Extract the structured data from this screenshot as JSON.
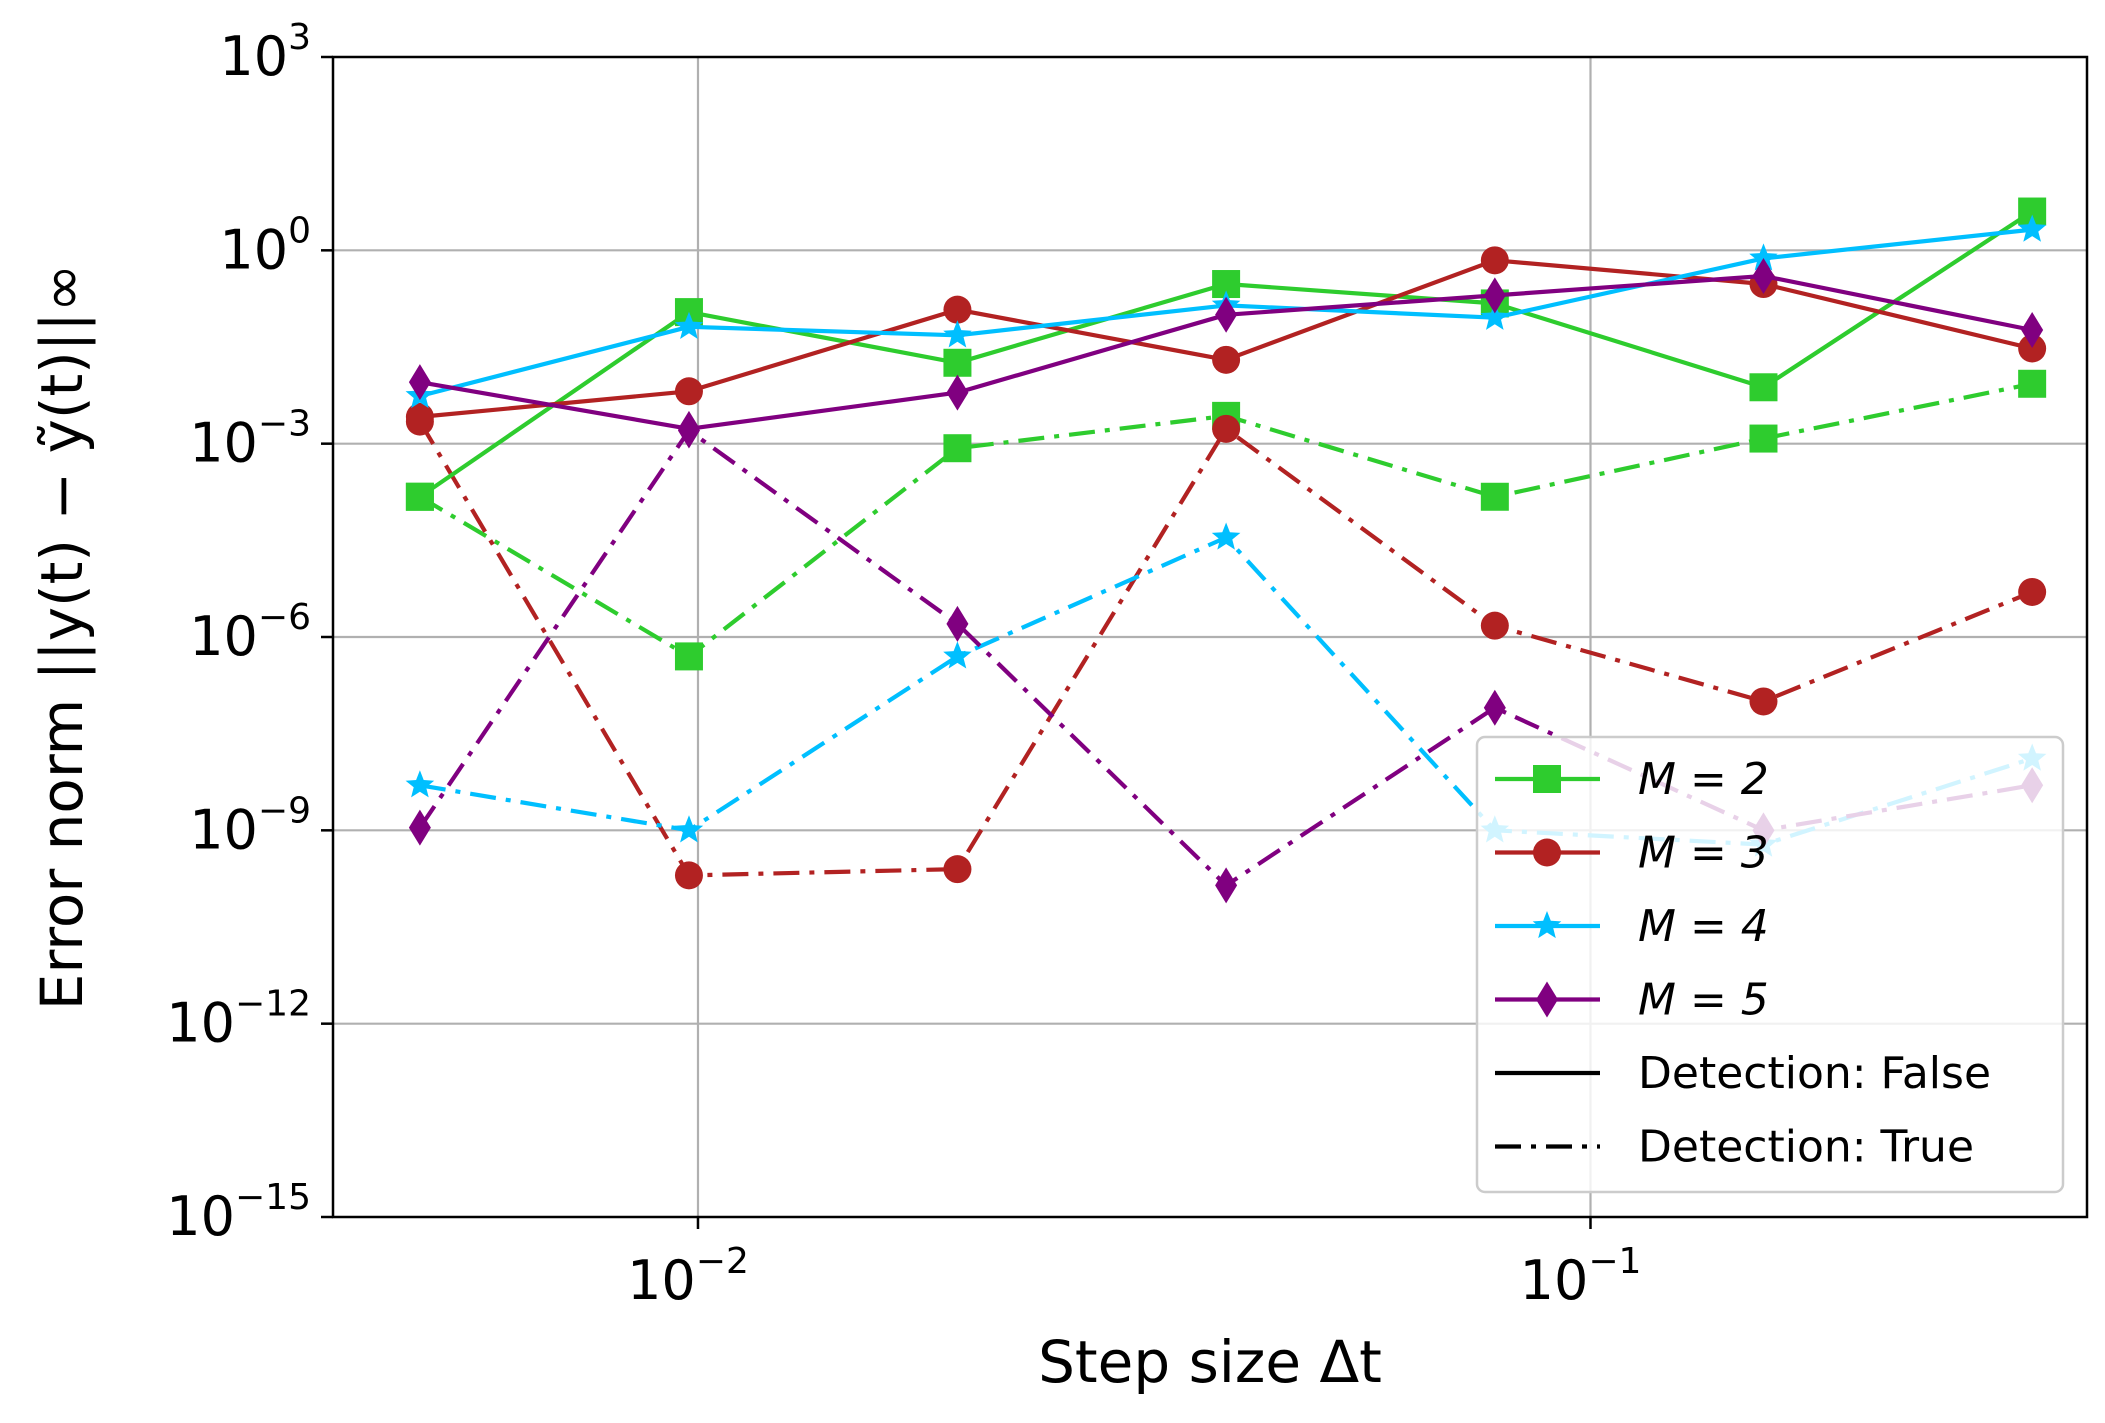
{
  "chart_data": {
    "type": "line",
    "xlabel": "Step size Δt",
    "ylabel": "Error norm ||y(t) − ỹ(t)||∞",
    "x_scale": "log",
    "y_scale": "log",
    "xlim": [
      0.0039,
      0.36
    ],
    "ylim": [
      1e-15,
      1000
    ],
    "x_ticks": [
      {
        "value": 0.01,
        "base": "10",
        "exp": "−2"
      },
      {
        "value": 0.1,
        "base": "10",
        "exp": "−1"
      }
    ],
    "y_ticks": [
      {
        "value": 1000,
        "base": "10",
        "exp": "3"
      },
      {
        "value": 1,
        "base": "10",
        "exp": "0"
      },
      {
        "value": 0.001,
        "base": "10",
        "exp": "−3"
      },
      {
        "value": 1e-06,
        "base": "10",
        "exp": "−6"
      },
      {
        "value": 1e-09,
        "base": "10",
        "exp": "−9"
      },
      {
        "value": 1e-12,
        "base": "10",
        "exp": "−12"
      },
      {
        "value": 1e-15,
        "base": "10",
        "exp": "−15"
      }
    ],
    "grid": true,
    "legend_position": "lower-right",
    "x": [
      0.00488,
      0.00977,
      0.01953,
      0.03906,
      0.07813,
      0.15625,
      0.3125
    ],
    "series": [
      {
        "name": "M = 2",
        "detection": "False",
        "color": "#2ecc2e",
        "marker": "square",
        "values": [
          0.00015,
          0.11,
          0.018,
          0.3,
          0.15,
          0.0075,
          4.0
        ]
      },
      {
        "name": "M = 3",
        "detection": "False",
        "color": "#b22222",
        "marker": "circle",
        "values": [
          0.0026,
          0.0065,
          0.12,
          0.02,
          0.7,
          0.3,
          0.03
        ]
      },
      {
        "name": "M = 4",
        "detection": "False",
        "color": "#00bfff",
        "marker": "star",
        "values": [
          0.0055,
          0.065,
          0.048,
          0.14,
          0.09,
          0.75,
          2.1
        ]
      },
      {
        "name": "M = 5",
        "detection": "False",
        "color": "#800080",
        "marker": "diamond",
        "values": [
          0.009,
          0.0017,
          0.0062,
          0.1,
          0.2,
          0.4,
          0.058
        ]
      },
      {
        "name": "M = 2",
        "detection": "True",
        "color": "#2ecc2e",
        "marker": "square",
        "values": [
          0.00015,
          5e-07,
          0.00085,
          0.0027,
          0.00015,
          0.0012,
          0.0085
        ]
      },
      {
        "name": "M = 3",
        "detection": "True",
        "color": "#b22222",
        "marker": "circle",
        "values": [
          0.0022,
          2e-10,
          2.5e-10,
          0.0017,
          1.5e-06,
          1e-07,
          5e-06
        ]
      },
      {
        "name": "M = 4",
        "detection": "True",
        "color": "#00bfff",
        "marker": "star",
        "values": [
          5e-09,
          1e-09,
          5e-07,
          3.5e-05,
          1e-09,
          6e-10,
          1.3e-08
        ]
      },
      {
        "name": "M = 5",
        "detection": "True",
        "color": "#800080",
        "marker": "diamond",
        "values": [
          1.1e-09,
          0.0016,
          1.6e-06,
          1.4e-10,
          8e-08,
          1e-09,
          5e-09
        ]
      }
    ],
    "legend": [
      {
        "label": "M = 2",
        "color": "#2ecc2e",
        "marker": "square",
        "style": "solid"
      },
      {
        "label": "M = 3",
        "color": "#b22222",
        "marker": "circle",
        "style": "solid"
      },
      {
        "label": "M = 4",
        "color": "#00bfff",
        "marker": "star",
        "style": "solid"
      },
      {
        "label": "M = 5",
        "color": "#800080",
        "marker": "diamond",
        "style": "solid"
      },
      {
        "label": "Detection: False",
        "color": "#000000",
        "marker": "none",
        "style": "solid"
      },
      {
        "label": "Detection: True",
        "color": "#000000",
        "marker": "none",
        "style": "dashdot"
      }
    ]
  }
}
